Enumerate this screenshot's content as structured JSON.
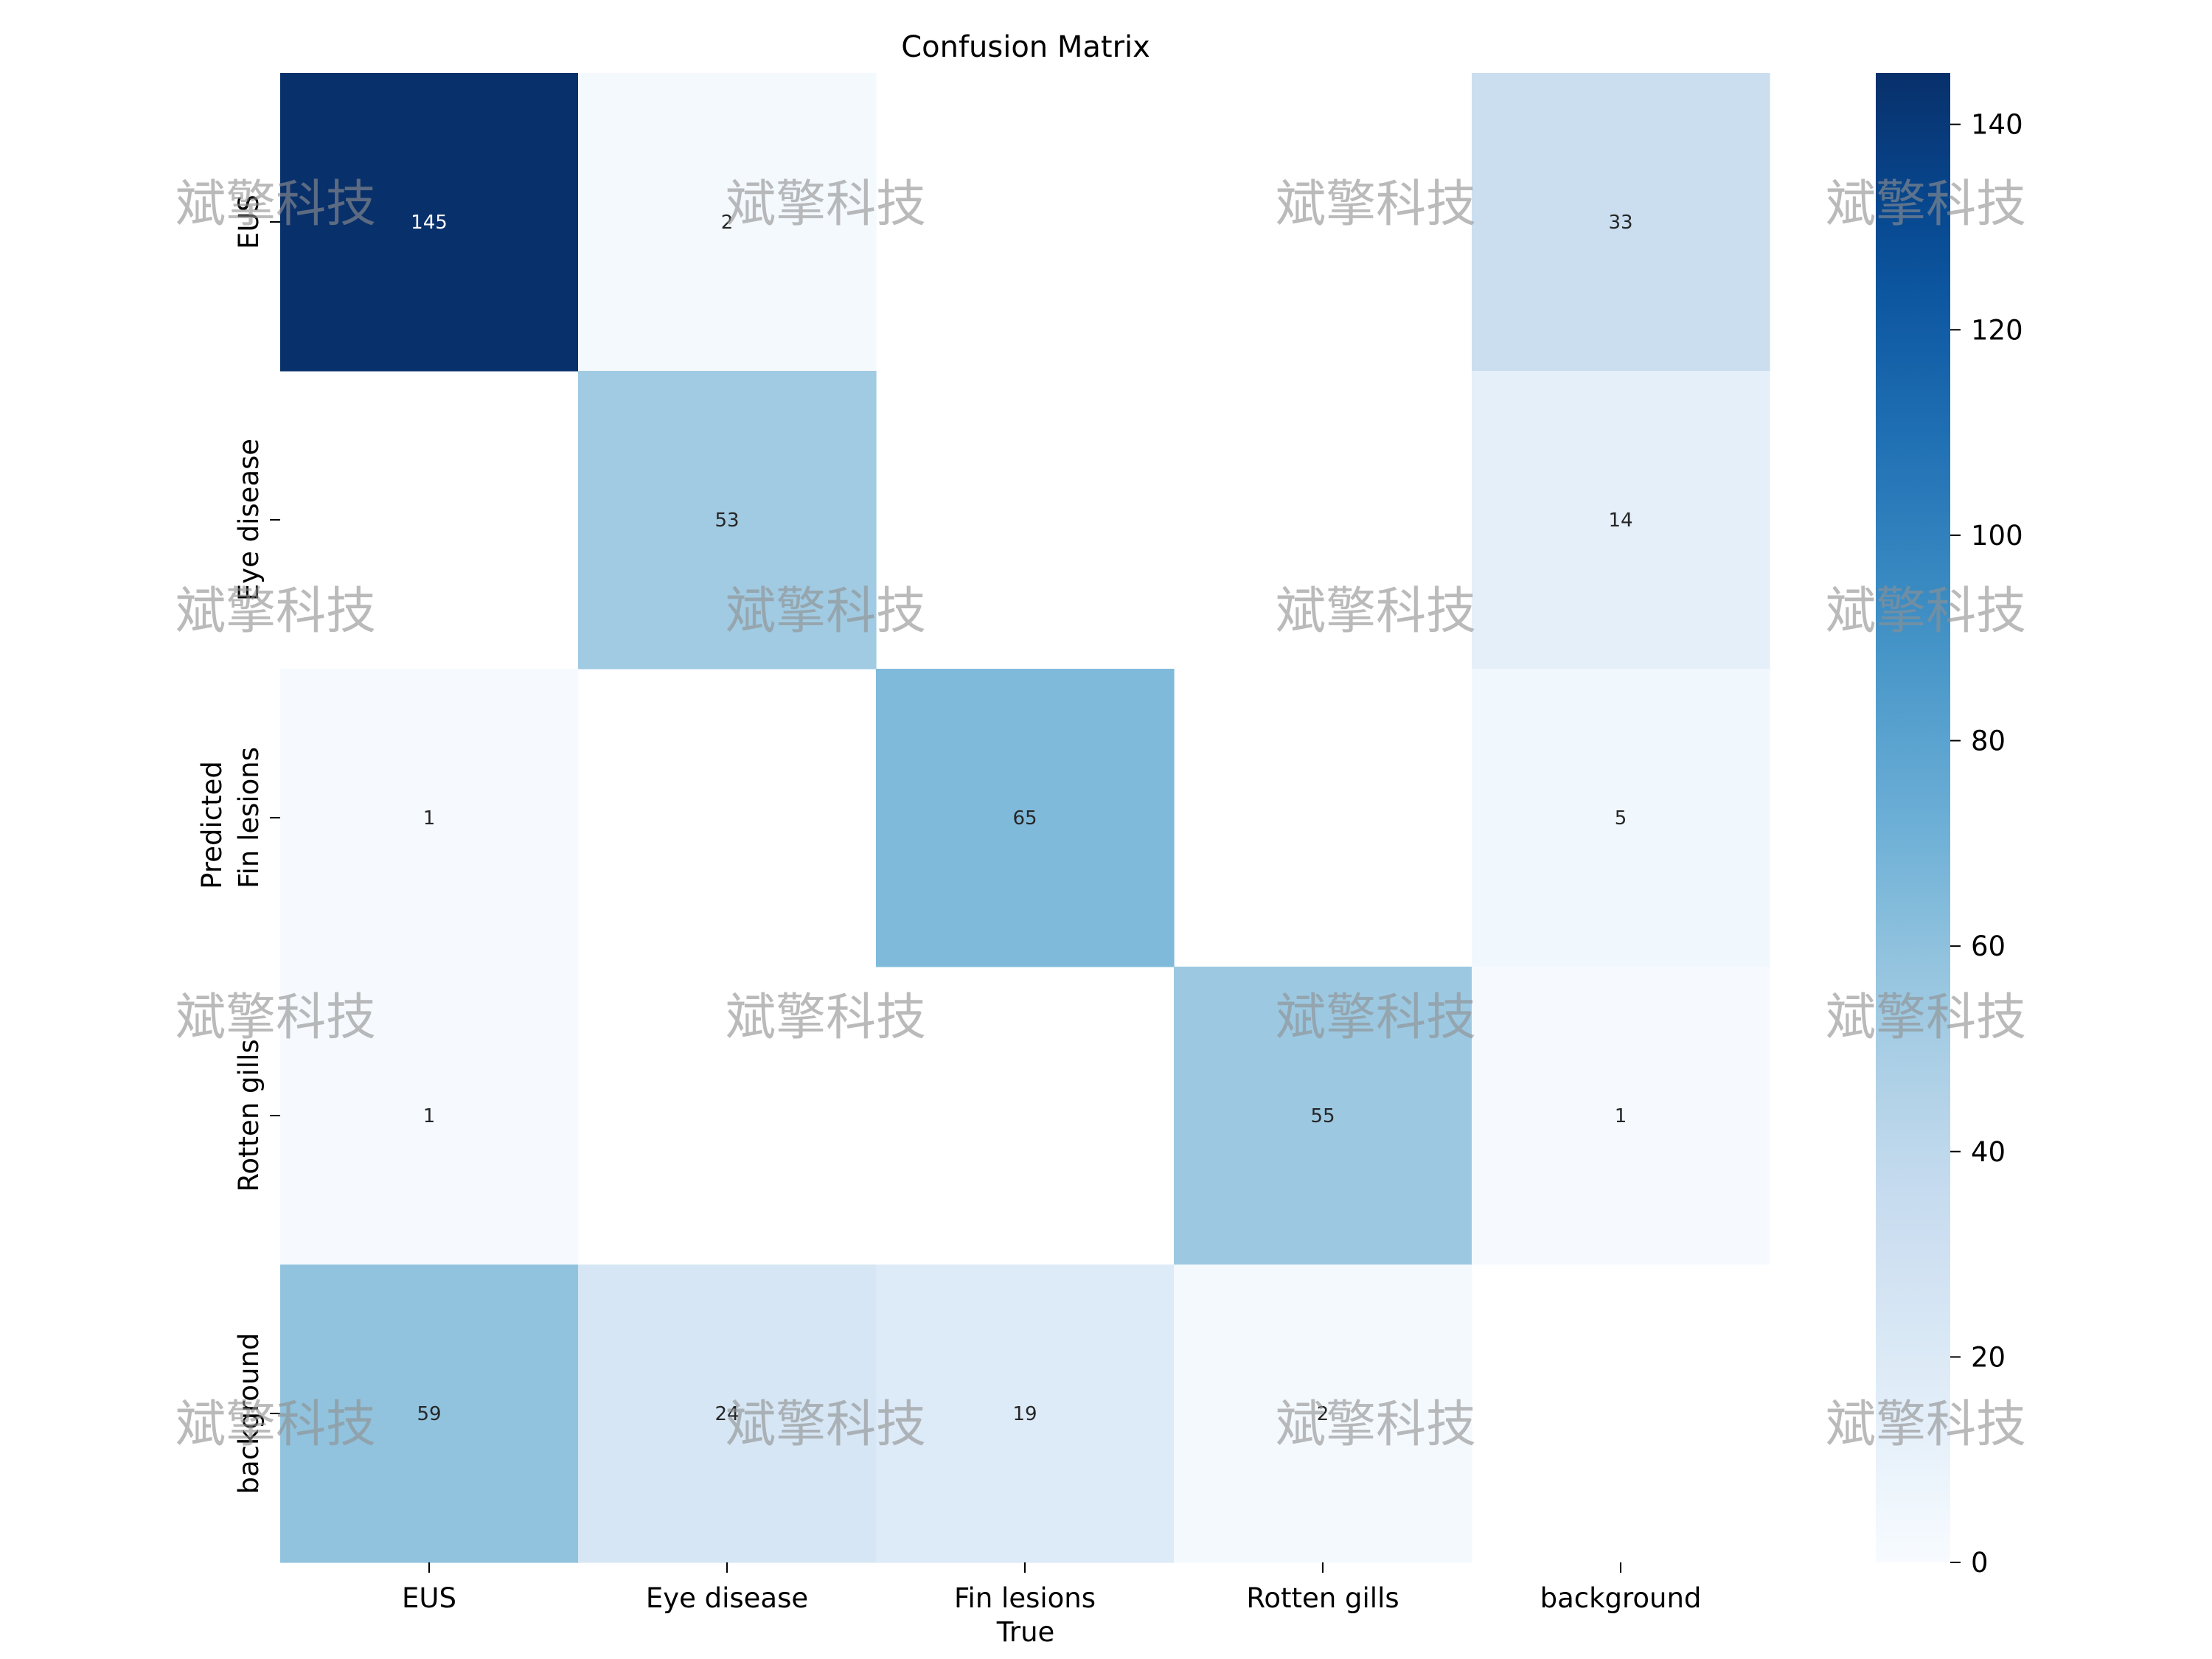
{
  "chart_data": {
    "type": "heatmap",
    "title": "Confusion Matrix",
    "xlabel": "True",
    "ylabel": "Predicted",
    "x_categories": [
      "EUS",
      "Eye disease",
      "Fin lesions",
      "Rotten gills",
      "background"
    ],
    "y_categories": [
      "EUS",
      "Eye disease",
      "Fin lesions",
      "Rotten gills",
      "background"
    ],
    "values": [
      [
        145,
        2,
        null,
        null,
        33
      ],
      [
        null,
        53,
        null,
        null,
        14
      ],
      [
        1,
        null,
        65,
        null,
        5
      ],
      [
        1,
        null,
        null,
        55,
        1
      ],
      [
        59,
        24,
        19,
        2,
        null
      ]
    ],
    "colorbar": {
      "min": 0,
      "max": 145,
      "ticks": [
        0,
        20,
        40,
        60,
        80,
        100,
        120,
        140
      ],
      "colormap": "Blues"
    },
    "grid": false,
    "watermark_text": "斌擎科技"
  }
}
